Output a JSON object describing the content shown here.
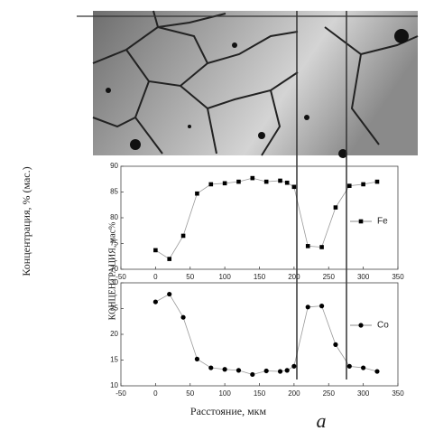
{
  "figure": {
    "ylabel": "Концентрация, % (мас.)",
    "xlabel": "Расстояние, мкм",
    "panel_label": "а"
  },
  "chart_data": [
    {
      "type": "line",
      "ylabel": "КОНЦЕНТРАЦИЯ, мас%",
      "x": [
        0,
        20,
        40,
        60,
        80,
        100,
        120,
        140,
        160,
        180,
        190,
        200,
        220,
        240,
        260,
        280,
        300,
        320
      ],
      "series": [
        {
          "name": "Fe",
          "color": "#000000",
          "marker": "square",
          "values": [
            73.7,
            72,
            76.5,
            84.7,
            86.5,
            86.7,
            87,
            87.7,
            87,
            87.2,
            86.8,
            86,
            74.5,
            74.3,
            82,
            86.2,
            86.5,
            87
          ]
        }
      ],
      "xlim": [
        -50,
        350
      ],
      "xticks": [
        -50,
        0,
        50,
        100,
        150,
        200,
        250,
        300,
        350
      ],
      "ylim": [
        70,
        90
      ],
      "yticks": [
        70,
        75,
        80,
        85,
        90
      ],
      "legend": "right"
    },
    {
      "type": "line",
      "x": [
        0,
        20,
        40,
        60,
        80,
        100,
        120,
        140,
        160,
        180,
        190,
        200,
        220,
        240,
        260,
        280,
        300,
        320
      ],
      "series": [
        {
          "name": "Co",
          "color": "#000000",
          "marker": "circle",
          "values": [
            26.3,
            27.8,
            23.3,
            15.2,
            13.5,
            13.2,
            13,
            12.2,
            12.9,
            12.8,
            13,
            13.8,
            25.3,
            25.5,
            18,
            13.8,
            13.5,
            12.8
          ]
        }
      ],
      "xlim": [
        -50,
        350
      ],
      "xticks": [
        -50,
        0,
        50,
        100,
        150,
        200,
        250,
        300,
        350
      ],
      "ylim": [
        10,
        30
      ],
      "yticks": [
        10,
        15,
        20,
        25,
        30
      ],
      "legend": "right"
    }
  ]
}
